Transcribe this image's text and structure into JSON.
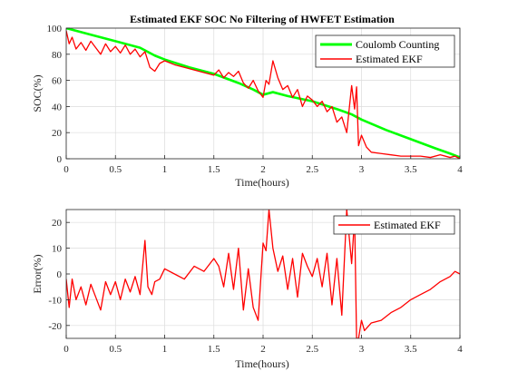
{
  "colors": {
    "coulomb": "#00ff00",
    "ekf": "#ff0000",
    "axis": "#262626",
    "grid": "#dcdcdc"
  },
  "chart_data": [
    {
      "type": "line",
      "title": "Estimated EKF SOC No Filtering of HWFET Estimation",
      "xlabel": "Time(hours)",
      "ylabel": "SOC(%)",
      "xlim": [
        0,
        4
      ],
      "ylim": [
        0,
        100
      ],
      "xticks": [
        0,
        0.5,
        1,
        1.5,
        2,
        2.5,
        3,
        3.5,
        4
      ],
      "xtick_labels": [
        "0",
        "0.5",
        "1",
        "1.5",
        "2",
        "2.5",
        "3",
        "3.5",
        "4"
      ],
      "yticks": [
        0,
        20,
        40,
        60,
        80,
        100
      ],
      "ytick_labels": [
        "0",
        "20",
        "40",
        "60",
        "80",
        "100"
      ],
      "grid": true,
      "legend_position": "top-right",
      "series": [
        {
          "name": "Coulomb Counting",
          "color": "#00ff00",
          "x": [
            0,
            0.25,
            0.5,
            0.75,
            0.9,
            1.0,
            1.25,
            1.5,
            1.75,
            1.9,
            2.0,
            2.1,
            2.25,
            2.5,
            2.75,
            2.9,
            3.0,
            3.25,
            3.5,
            3.75,
            3.9,
            4.0
          ],
          "y": [
            100,
            95,
            90,
            85,
            79,
            76,
            70,
            65,
            58,
            53,
            49,
            51,
            48,
            44,
            38,
            34,
            30,
            22,
            15,
            8,
            4,
            1
          ]
        },
        {
          "name": "Estimated EKF",
          "color": "#ff0000",
          "x": [
            0,
            0.03,
            0.06,
            0.1,
            0.15,
            0.2,
            0.25,
            0.3,
            0.35,
            0.4,
            0.45,
            0.5,
            0.55,
            0.6,
            0.65,
            0.7,
            0.75,
            0.8,
            0.85,
            0.9,
            0.95,
            1.0,
            1.1,
            1.2,
            1.3,
            1.4,
            1.5,
            1.55,
            1.6,
            1.65,
            1.7,
            1.75,
            1.8,
            1.85,
            1.9,
            1.95,
            2.0,
            2.03,
            2.06,
            2.1,
            2.15,
            2.2,
            2.25,
            2.3,
            2.35,
            2.4,
            2.45,
            2.5,
            2.55,
            2.6,
            2.65,
            2.7,
            2.75,
            2.8,
            2.85,
            2.9,
            2.93,
            2.95,
            2.97,
            3.0,
            3.05,
            3.1,
            3.2,
            3.3,
            3.4,
            3.5,
            3.6,
            3.7,
            3.8,
            3.9,
            3.95,
            4.0
          ],
          "y": [
            98,
            88,
            93,
            84,
            89,
            83,
            90,
            85,
            80,
            88,
            82,
            86,
            81,
            87,
            80,
            84,
            78,
            82,
            70,
            67,
            73,
            75,
            72,
            70,
            68,
            66,
            64,
            68,
            62,
            66,
            63,
            67,
            58,
            54,
            60,
            52,
            47,
            60,
            57,
            75,
            62,
            53,
            56,
            47,
            53,
            40,
            48,
            45,
            40,
            44,
            36,
            40,
            28,
            32,
            20,
            56,
            38,
            55,
            10,
            18,
            9,
            5,
            4,
            3,
            2,
            2,
            2,
            1,
            3,
            1,
            2,
            0
          ]
        }
      ]
    },
    {
      "type": "line",
      "title": "",
      "xlabel": "Time(hours)",
      "ylabel": "Error(%)",
      "xlim": [
        0,
        4
      ],
      "ylim": [
        -25,
        25
      ],
      "xticks": [
        0,
        0.5,
        1,
        1.5,
        2,
        2.5,
        3,
        3.5,
        4
      ],
      "xtick_labels": [
        "0",
        "0.5",
        "1",
        "1.5",
        "2",
        "2.5",
        "3",
        "3.5",
        "4"
      ],
      "yticks": [
        -20,
        -10,
        0,
        10,
        20
      ],
      "ytick_labels": [
        "-20",
        "-10",
        "0",
        "10",
        "20"
      ],
      "grid": true,
      "legend_position": "top-right",
      "series": [
        {
          "name": "Estimated EKF",
          "color": "#ff0000",
          "x": [
            0,
            0.03,
            0.06,
            0.1,
            0.15,
            0.2,
            0.25,
            0.3,
            0.35,
            0.4,
            0.45,
            0.5,
            0.55,
            0.6,
            0.65,
            0.7,
            0.75,
            0.8,
            0.83,
            0.87,
            0.9,
            0.95,
            1.0,
            1.1,
            1.2,
            1.3,
            1.4,
            1.5,
            1.55,
            1.6,
            1.65,
            1.7,
            1.75,
            1.8,
            1.85,
            1.9,
            1.95,
            2.0,
            2.03,
            2.06,
            2.1,
            2.15,
            2.2,
            2.25,
            2.3,
            2.35,
            2.4,
            2.45,
            2.5,
            2.55,
            2.6,
            2.65,
            2.7,
            2.75,
            2.8,
            2.85,
            2.9,
            2.93,
            2.95,
            2.97,
            3.0,
            3.03,
            3.1,
            3.2,
            3.3,
            3.4,
            3.5,
            3.6,
            3.7,
            3.8,
            3.9,
            3.95,
            4.0
          ],
          "y": [
            -2,
            -13,
            -2,
            -10,
            -5,
            -12,
            -4,
            -9,
            -14,
            -3,
            -8,
            -3,
            -10,
            -2,
            -7,
            -1,
            -8,
            13,
            -5,
            -8,
            -3,
            -2,
            2,
            0,
            -2,
            3,
            1,
            6,
            3,
            -5,
            8,
            -6,
            10,
            -14,
            2,
            -13,
            -18,
            12,
            9,
            25,
            10,
            1,
            7,
            -6,
            6,
            -9,
            8,
            3,
            -1,
            6,
            -5,
            8,
            -12,
            6,
            -16,
            25,
            4,
            22,
            -25,
            -25,
            -18,
            -22,
            -19,
            -18,
            -15,
            -13,
            -10,
            -8,
            -6,
            -3,
            -1,
            1,
            0
          ]
        }
      ]
    }
  ]
}
